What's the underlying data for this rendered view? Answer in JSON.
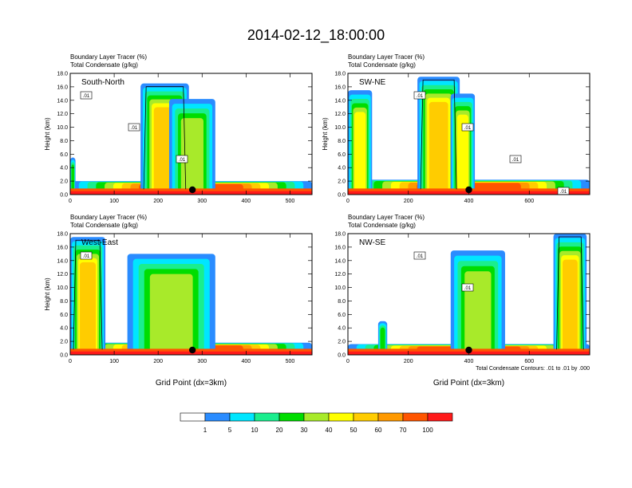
{
  "figure": {
    "title": "2014-02-12_18:00:00",
    "footnote": "Total Condensate Contours: .01 to .01 by .000"
  },
  "colorbar": {
    "levels": [
      "1",
      "5",
      "10",
      "20",
      "30",
      "40",
      "50",
      "60",
      "70",
      "100"
    ],
    "colors": [
      "#ffffff",
      "#2a8cff",
      "#00e6ff",
      "#1aee8e",
      "#00dd00",
      "#a8ea2a",
      "#ffff00",
      "#ffcc00",
      "#ff9900",
      "#ff5500",
      "#ff1a1a"
    ]
  },
  "chart_data": [
    {
      "type": "heatmap",
      "field_label": "Boundary Layer Tracer",
      "field_unit": "(%)",
      "contour_label": "Total Condensate",
      "contour_unit": "(g/kg)",
      "panel_label": "South-North",
      "ylabel": "Height (km)",
      "xlabel": "",
      "xlim": [
        0,
        550
      ],
      "ylim": [
        0,
        18
      ],
      "xticks": [
        "0",
        "100",
        "200",
        "300",
        "400",
        "500"
      ],
      "yticks": [
        "0.0",
        "2.0",
        "4.0",
        "6.0",
        "8.0",
        "10.0",
        "12.0",
        "14.0",
        "16.0",
        "18.0"
      ],
      "marker_x": 278,
      "contour_labels": [
        ".01",
        ".01",
        ".01"
      ],
      "blobs": [
        {
          "x0": 0,
          "x1": 550,
          "ytop": 2.0,
          "core": 7
        },
        {
          "x0": 160,
          "x1": 270,
          "ytop": 16.5,
          "core": 5
        },
        {
          "x0": 225,
          "x1": 330,
          "ytop": 14.2,
          "core": 3
        },
        {
          "x0": 0,
          "x1": 12,
          "ytop": 5.5,
          "core": 2
        }
      ]
    },
    {
      "type": "heatmap",
      "field_label": "Boundary Layer Tracer",
      "field_unit": "(%)",
      "contour_label": "Total Condensate",
      "contour_unit": "(g/kg)",
      "panel_label": "SW-NE",
      "ylabel": "Height (km)",
      "xlabel": "",
      "xlim": [
        0,
        800
      ],
      "ylim": [
        0,
        18
      ],
      "xticks": [
        "0",
        "200",
        "400",
        "600"
      ],
      "yticks": [
        "0.0",
        "2.0",
        "4.0",
        "6.0",
        "8.0",
        "10.0",
        "12.0",
        "14.0",
        "16.0",
        "18.0"
      ],
      "marker_x": 400,
      "contour_labels": [
        ".01",
        ".01",
        ".01",
        ".01"
      ],
      "blobs": [
        {
          "x0": 0,
          "x1": 800,
          "ytop": 2.2,
          "core": 7
        },
        {
          "x0": 0,
          "x1": 80,
          "ytop": 15.5,
          "core": 4
        },
        {
          "x0": 230,
          "x1": 370,
          "ytop": 17.5,
          "core": 5
        },
        {
          "x0": 340,
          "x1": 420,
          "ytop": 15.0,
          "core": 4
        }
      ]
    },
    {
      "type": "heatmap",
      "field_label": "Boundary Layer Tracer",
      "field_unit": "(%)",
      "contour_label": "Total Condensate",
      "contour_unit": "(g/kg)",
      "panel_label": "West-East",
      "ylabel": "Height (km)",
      "xlabel": "Grid Point (dx=3km)",
      "xlim": [
        0,
        550
      ],
      "ylim": [
        0,
        18
      ],
      "xticks": [
        "0",
        "100",
        "200",
        "300",
        "400",
        "500"
      ],
      "yticks": [
        "0.0",
        "2.0",
        "4.0",
        "6.0",
        "8.0",
        "10.0",
        "12.0",
        "14.0",
        "16.0",
        "18.0"
      ],
      "marker_x": 278,
      "contour_labels": [
        ".01"
      ],
      "blobs": [
        {
          "x0": 0,
          "x1": 550,
          "ytop": 1.8,
          "core": 7
        },
        {
          "x0": 0,
          "x1": 80,
          "ytop": 17.5,
          "core": 5
        },
        {
          "x0": 130,
          "x1": 330,
          "ytop": 15.0,
          "core": 3
        }
      ]
    },
    {
      "type": "heatmap",
      "field_label": "Boundary Layer Tracer",
      "field_unit": "(%)",
      "contour_label": "Total Condensate",
      "contour_unit": "(g/kg)",
      "panel_label": "NW-SE",
      "ylabel": "",
      "xlabel": "Grid Point (dx=3km)",
      "xlim": [
        0,
        800
      ],
      "ylim": [
        0,
        18
      ],
      "xticks": [
        "0",
        "200",
        "400",
        "600"
      ],
      "yticks": [
        "0.0",
        "2.0",
        "4.0",
        "6.0",
        "8.0",
        "10.0",
        "12.0",
        "14.0",
        "16.0",
        "18.0"
      ],
      "marker_x": 400,
      "contour_labels": [
        ".01",
        ".01"
      ],
      "blobs": [
        {
          "x0": 0,
          "x1": 800,
          "ytop": 1.6,
          "core": 7
        },
        {
          "x0": 340,
          "x1": 520,
          "ytop": 15.5,
          "core": 3
        },
        {
          "x0": 680,
          "x1": 790,
          "ytop": 18.0,
          "core": 5
        },
        {
          "x0": 100,
          "x1": 130,
          "ytop": 5.0,
          "core": 2
        }
      ]
    }
  ]
}
